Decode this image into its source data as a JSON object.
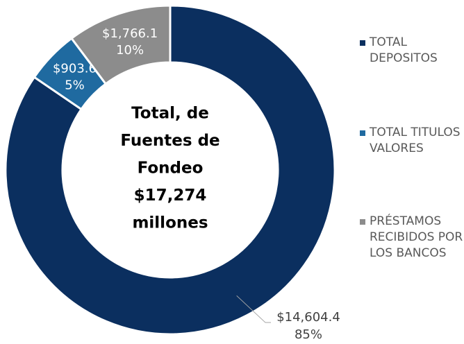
{
  "chart_data": {
    "type": "donut",
    "categories": [
      "TOTAL DEPOSITOS",
      "TOTAL TITULOS VALORES",
      "PRÉSTAMOS RECIBIDOS POR LOS BANCOS"
    ],
    "values": [
      14604.4,
      903.6,
      1766.1
    ],
    "value_labels": [
      "$14,604.4",
      "$903.6",
      "$1,766.1"
    ],
    "percent_labels": [
      "85%",
      "5%",
      "10%"
    ],
    "colors": [
      "#0b2f5f",
      "#1f6aa0",
      "#8c8c8c"
    ],
    "center_text": [
      "Total, de",
      "Fuentes de",
      "Fondeo",
      "$17,274",
      "millones"
    ],
    "legend": "right"
  }
}
